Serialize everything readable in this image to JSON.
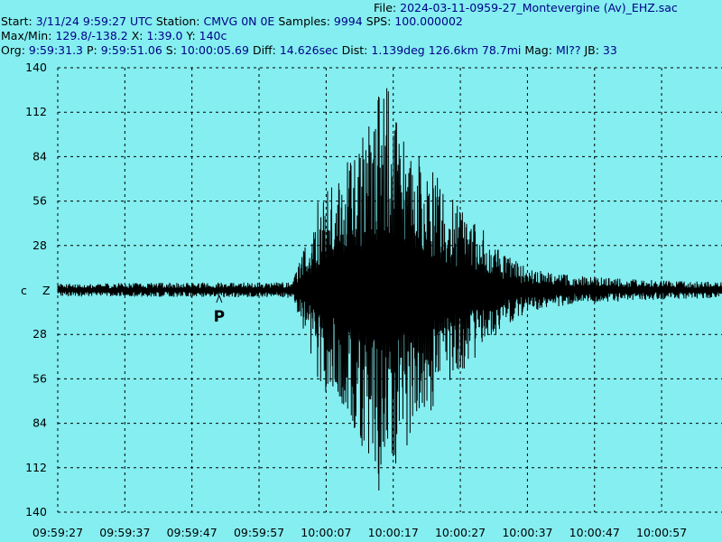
{
  "header": {
    "file_label": "File:",
    "file_value": "2024-03-11-0959-27_Montevergine (Av)_EHZ.sac",
    "start_label": "Start:",
    "start_value": "3/11/24  9:59:27 UTC",
    "station_label": "Station:",
    "station_value": "CMVG 0N 0E",
    "samples_label": "Samples:",
    "samples_value": "9994",
    "sps_label": "SPS:",
    "sps_value": "100.000002",
    "maxmin_label": "Max/Min:",
    "maxmin_value": "129.8/-138.2",
    "x_label": "X:",
    "x_value": "1:39.0",
    "y_label": "Y:",
    "y_value": "140c",
    "org_label": "Org:",
    "org_value": "9:59:31.3",
    "p_label": "P:",
    "p_value": "9:59:51.06",
    "s_label": "S:",
    "s_value": "10:00:05.69",
    "diff_label": "Diff:",
    "diff_value": "14.626sec",
    "dist_label": "Dist:",
    "dist_value": "1.139deg 126.6km 78.7mi",
    "mag_label": "Mag:",
    "mag_value": "Ml??",
    "jb_label": "JB:",
    "jb_value": "33"
  },
  "chart_data": {
    "type": "line",
    "series": [],
    "channel_labels": [
      "c",
      "Z"
    ],
    "y_tick_labels": [
      "140",
      "112",
      "84",
      "56",
      "28",
      "28",
      "56",
      "84",
      "112",
      "140"
    ],
    "y_ticks": [
      140,
      112,
      84,
      56,
      28,
      -28,
      -56,
      -84,
      -112,
      -140
    ],
    "ylim": [
      -140,
      140
    ],
    "x_tick_labels": [
      "09:59:27",
      "09:59:37",
      "09:59:47",
      "09:59:57",
      "10:00:07",
      "10:00:17",
      "10:00:27",
      "10:00:37",
      "10:00:47",
      "10:00:57"
    ],
    "x_ticks_sec": [
      0,
      10,
      20,
      30,
      40,
      50,
      60,
      70,
      80,
      90
    ],
    "xlim_sec": [
      0,
      99.0
    ],
    "grid": true,
    "markers": [
      {
        "label": "P",
        "t_sec": 24.06
      }
    ],
    "trace_envelope": {
      "t_sec": [
        0,
        35,
        37,
        39,
        42,
        45,
        47,
        49,
        51,
        53,
        56,
        60,
        63,
        66,
        70,
        75,
        80,
        90,
        99
      ],
      "amplitude": [
        4,
        5,
        30,
        60,
        75,
        95,
        120,
        138,
        110,
        90,
        75,
        55,
        40,
        25,
        14,
        10,
        8,
        6,
        5
      ]
    },
    "colors": {
      "background": "#84EEF0",
      "trace": "#000000",
      "grid": "#000000",
      "header_value": "#000088"
    }
  }
}
